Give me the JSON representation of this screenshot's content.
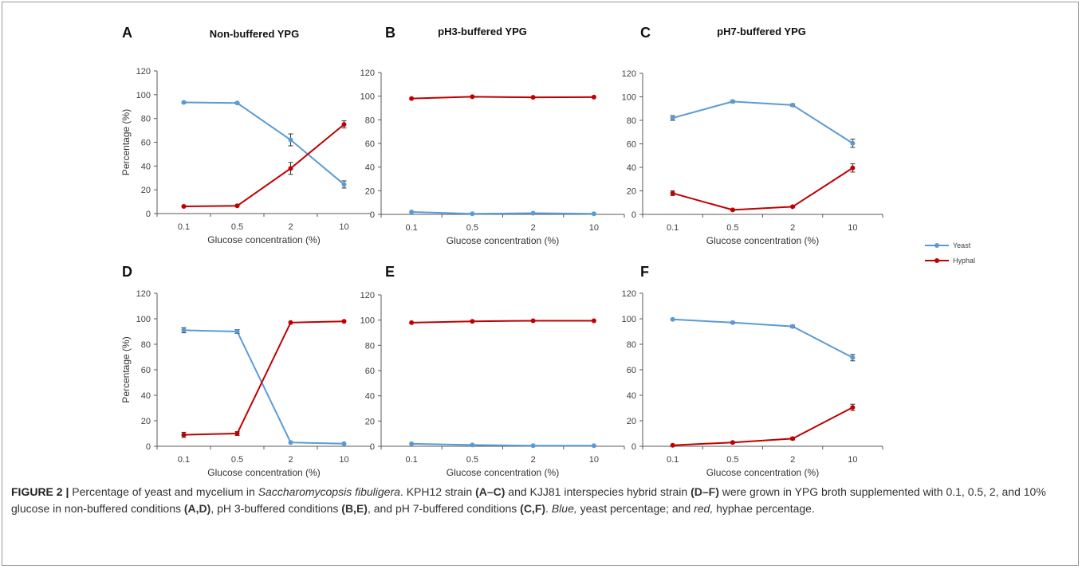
{
  "colors": {
    "yeast": "#5b9bd5",
    "hyphal": "#c00000",
    "axis": "#595959",
    "text": "#404040"
  },
  "legend": {
    "yeast_label": "Yeast",
    "hyphal_label": "Hyphal",
    "placement": "right"
  },
  "chart_data": [
    {
      "panel": "A",
      "type": "line",
      "title": "Non-buffered YPG",
      "xlabel": "Glucose concentration (%)",
      "ylabel": "Percentage (%)",
      "categories": [
        "0.1",
        "0.5",
        "2",
        "10"
      ],
      "ylim": [
        0,
        120
      ],
      "yticks": [
        0,
        20,
        40,
        60,
        80,
        100,
        120
      ],
      "series": [
        {
          "name": "Yeast",
          "values": [
            93.5,
            93,
            62,
            24.5
          ],
          "errors": [
            0.5,
            0.5,
            5,
            3
          ]
        },
        {
          "name": "Hyphal",
          "values": [
            6,
            6.5,
            38,
            75
          ],
          "errors": [
            0.5,
            0.5,
            5,
            3
          ]
        }
      ]
    },
    {
      "panel": "B",
      "type": "line",
      "title": "pH3-buffered YPG",
      "xlabel": "Glucose concentration (%)",
      "ylabel": "",
      "categories": [
        "0.1",
        "0.5",
        "2",
        "10"
      ],
      "ylim": [
        0,
        120
      ],
      "yticks": [
        0,
        20,
        40,
        60,
        80,
        100,
        120
      ],
      "series": [
        {
          "name": "Yeast",
          "values": [
            2,
            0.5,
            1,
            0.5
          ],
          "errors": [
            0.3,
            0.2,
            0.3,
            0.2
          ]
        },
        {
          "name": "Hyphal",
          "values": [
            98,
            99.5,
            99,
            99.2
          ],
          "errors": [
            0.3,
            0.2,
            0.3,
            0.2
          ]
        }
      ]
    },
    {
      "panel": "C",
      "type": "line",
      "title": "pH7-buffered YPG",
      "xlabel": "Glucose concentration (%)",
      "ylabel": "",
      "categories": [
        "0.1",
        "0.5",
        "2",
        "10"
      ],
      "ylim": [
        0,
        120
      ],
      "yticks": [
        0,
        20,
        40,
        60,
        80,
        100,
        120
      ],
      "series": [
        {
          "name": "Yeast",
          "values": [
            82,
            96,
            93,
            60.5
          ],
          "errors": [
            2,
            1,
            1,
            3.5
          ]
        },
        {
          "name": "Hyphal",
          "values": [
            18,
            3.8,
            6.5,
            39.5
          ],
          "errors": [
            2,
            0.5,
            0.5,
            3.5
          ]
        }
      ]
    },
    {
      "panel": "D",
      "type": "line",
      "title": "",
      "xlabel": "Glucose concentration (%)",
      "ylabel": "Percentage (%)",
      "categories": [
        "0.1",
        "0.5",
        "2",
        "10"
      ],
      "ylim": [
        0,
        120
      ],
      "yticks": [
        0,
        20,
        40,
        60,
        80,
        100,
        120
      ],
      "series": [
        {
          "name": "Yeast",
          "values": [
            91,
            90,
            3,
            2
          ],
          "errors": [
            2,
            1.5,
            0.3,
            0.3
          ]
        },
        {
          "name": "Hyphal",
          "values": [
            9,
            10,
            97,
            98
          ],
          "errors": [
            2,
            1.5,
            0.3,
            0.3
          ]
        }
      ]
    },
    {
      "panel": "E",
      "type": "line",
      "title": "",
      "xlabel": "Glucose concentration (%)",
      "ylabel": "",
      "categories": [
        "0.1",
        "0.5",
        "2",
        "10"
      ],
      "ylim": [
        0,
        120
      ],
      "yticks": [
        0,
        20,
        40,
        60,
        80,
        100,
        120
      ],
      "series": [
        {
          "name": "Yeast",
          "values": [
            2,
            1,
            0.5,
            0.5
          ],
          "errors": [
            0.3,
            0.2,
            0.2,
            0.2
          ]
        },
        {
          "name": "Hyphal",
          "values": [
            98,
            99,
            99.5,
            99.5
          ],
          "errors": [
            0.3,
            0.2,
            0.2,
            0.2
          ]
        }
      ]
    },
    {
      "panel": "F",
      "type": "line",
      "title": "",
      "xlabel": "Glucose concentration (%)",
      "ylabel": "",
      "categories": [
        "0.1",
        "0.5",
        "2",
        "10"
      ],
      "ylim": [
        0,
        120
      ],
      "yticks": [
        0,
        20,
        40,
        60,
        80,
        100,
        120
      ],
      "series": [
        {
          "name": "Yeast",
          "values": [
            99.5,
            97,
            94,
            69.5
          ],
          "errors": [
            0.3,
            0.5,
            1,
            2.5
          ]
        },
        {
          "name": "Hyphal",
          "values": [
            0.8,
            3,
            6,
            30.5
          ],
          "errors": [
            0.3,
            0.5,
            1,
            2.5
          ]
        }
      ]
    }
  ],
  "caption": {
    "label": "FIGURE 2 |",
    "t1": " Percentage of yeast and mycelium in ",
    "species": "Saccharomycopsis fibuligera",
    "t2": ". KPH12 strain ",
    "r1": "(A–C)",
    "t3": " and KJJ81 interspecies hybrid strain ",
    "r2": "(D–F)",
    "t4": " were grown in YPG broth supplemented with 0.1, 0.5, 2, and 10% glucose in non-buffered conditions ",
    "r3": "(A,D)",
    "t5": ", pH 3-buffered conditions ",
    "r4": "(B,E)",
    "t6": ", and pH 7-buffered conditions ",
    "r5": "(C,F)",
    "t7": ". ",
    "blue": "Blue,",
    "t8": " yeast percentage; and ",
    "red": "red,",
    "t9": " hyphae percentage."
  }
}
